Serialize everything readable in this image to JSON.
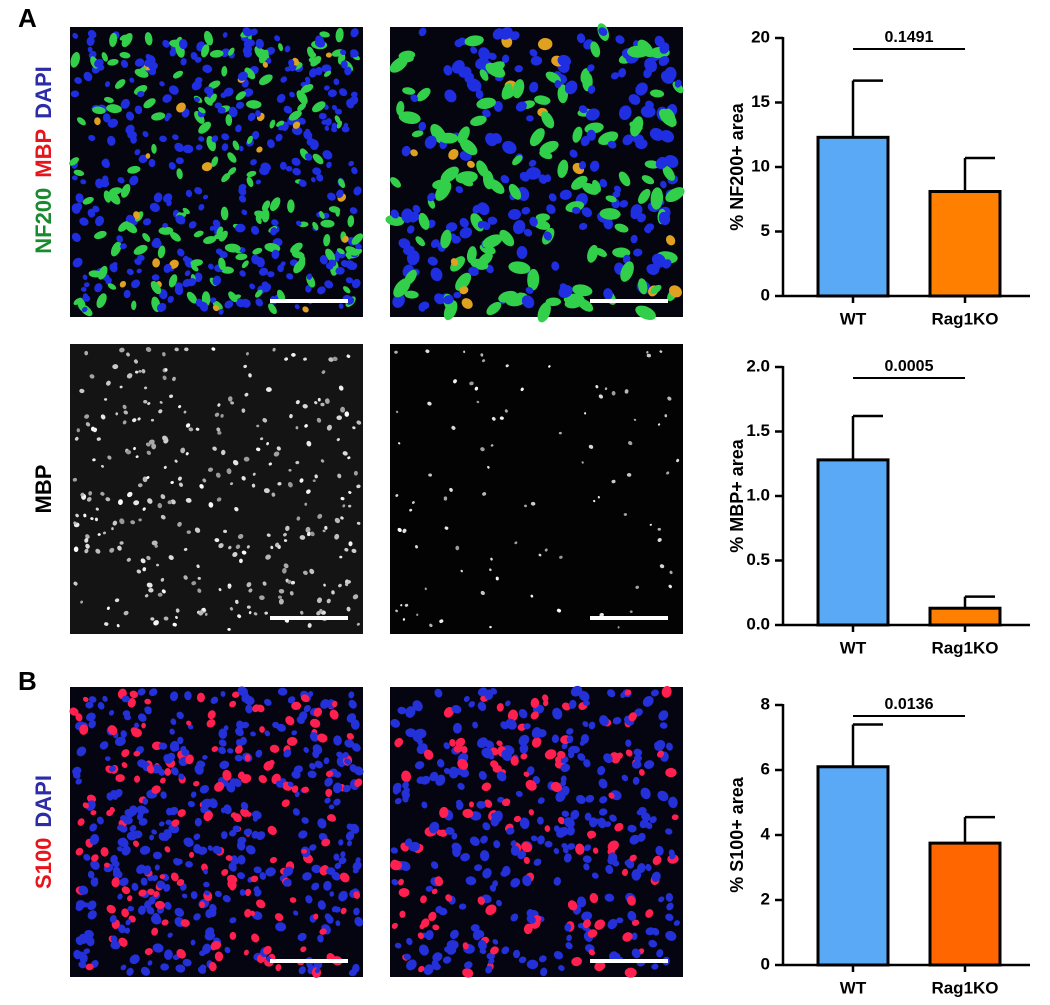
{
  "panel_labels": [
    "A",
    "B"
  ],
  "row_labels": [
    [
      {
        "text": "NF200",
        "color": "#1a8a2e"
      },
      {
        "text": "MBP",
        "color": "#e8141c"
      },
      {
        "text": "DAPI",
        "color": "#2c2ca8"
      }
    ],
    [
      {
        "text": "MBP",
        "color": "#000000"
      }
    ],
    [
      {
        "text": "S100",
        "color": "#e8141c"
      },
      {
        "text": "DAPI",
        "color": "#2c2ca8"
      }
    ]
  ],
  "chart_data": [
    {
      "type": "bar",
      "ylabel": "% NF200+ area",
      "annotation": "0.1491",
      "categories": [
        "WT",
        "Rag1KO"
      ],
      "values": [
        12.3,
        8.1
      ],
      "errors": [
        4.4,
        2.6
      ],
      "colors": [
        "#59a9f7",
        "#ff8000"
      ],
      "ylim": [
        0,
        20
      ],
      "yticks": [
        0,
        5,
        10,
        15,
        20
      ]
    },
    {
      "type": "bar",
      "ylabel": "% MBP+ area",
      "annotation": "0.0005",
      "categories": [
        "WT",
        "Rag1KO"
      ],
      "values": [
        1.28,
        0.13
      ],
      "errors": [
        0.34,
        0.09
      ],
      "colors": [
        "#59a9f7",
        "#ff8000"
      ],
      "ylim": [
        0,
        2
      ],
      "yticks": [
        {
          "value": 0,
          "label": "0.0"
        },
        0.5,
        {
          "value": 1,
          "label": "1.0"
        },
        1.5,
        {
          "value": 2,
          "label": "2.0"
        }
      ]
    },
    {
      "type": "bar",
      "ylabel": "% S100+ area",
      "annotation": "0.0136",
      "categories": [
        "WT",
        "Rag1KO"
      ],
      "values": [
        6.1,
        3.75
      ],
      "errors": [
        1.3,
        0.8
      ],
      "colors": [
        "#59a9f7",
        "#ff6600"
      ],
      "ylim": [
        0,
        8
      ],
      "yticks": [
        0,
        2,
        4,
        6,
        8
      ]
    }
  ]
}
